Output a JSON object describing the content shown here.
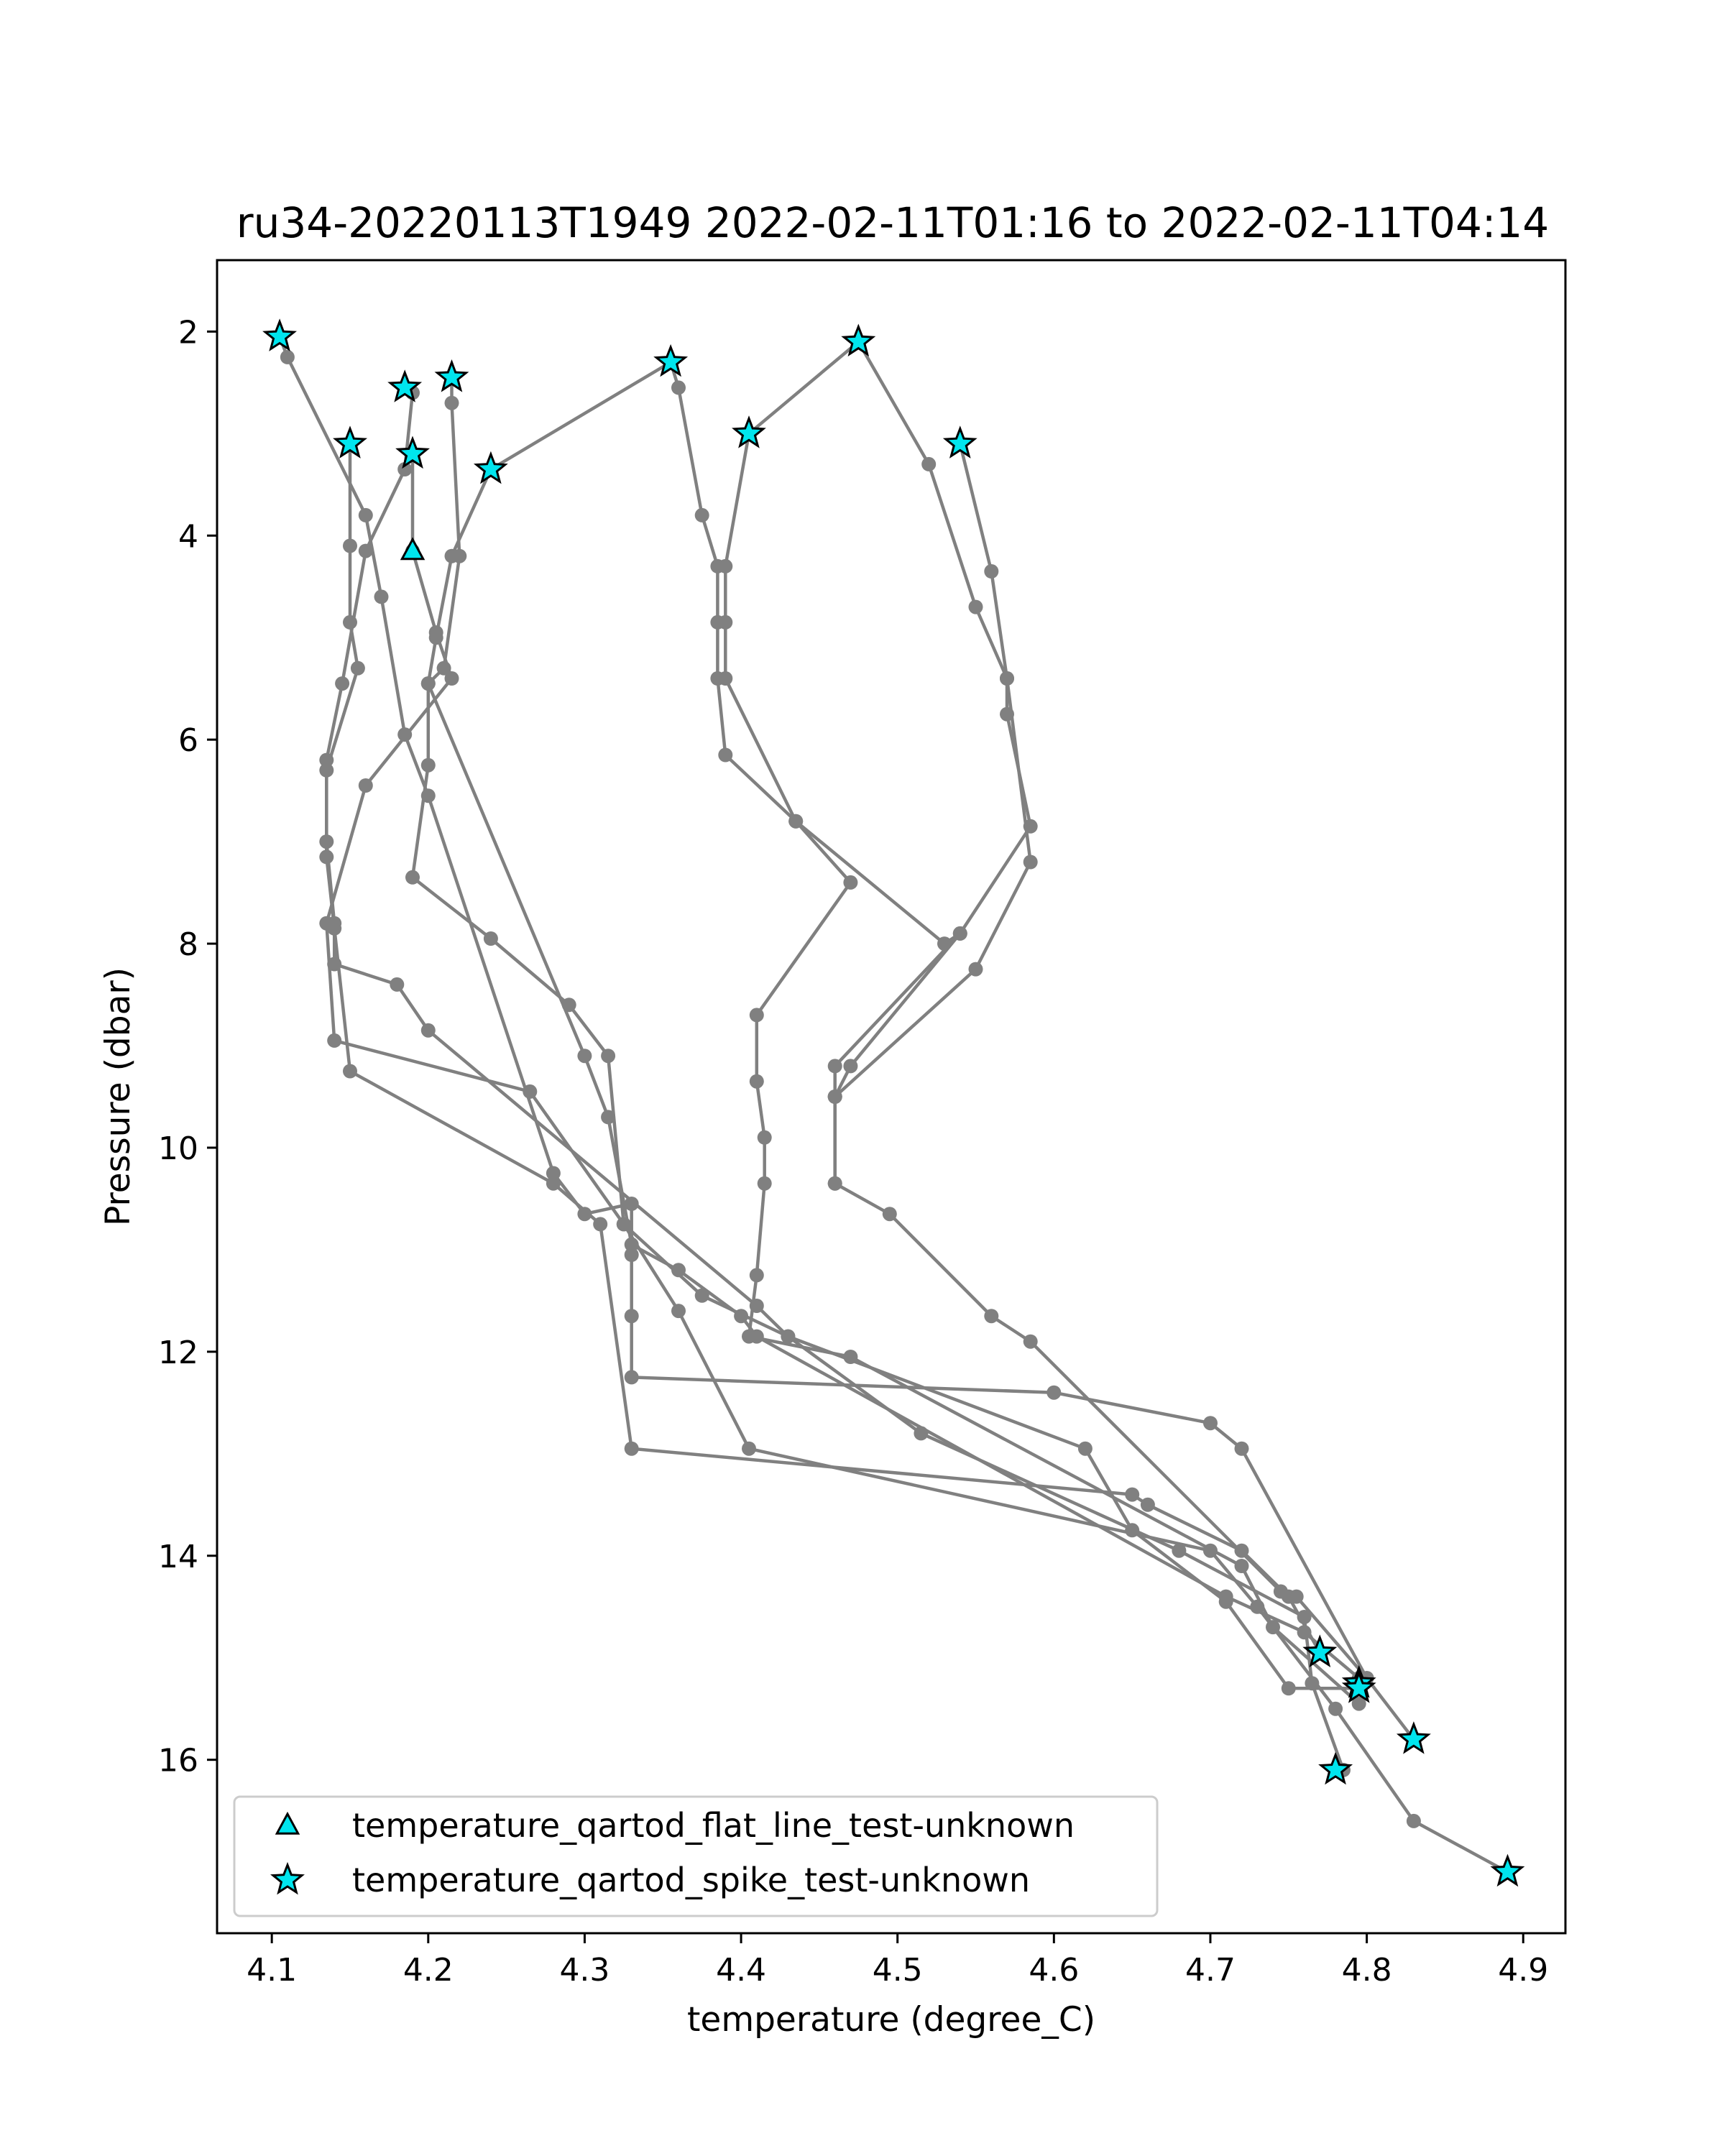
{
  "chart_data": {
    "type": "line",
    "title": "ru34-20220113T1949 2022-02-11T01:16 to 2022-02-11T04:14",
    "xlabel": "temperature (degree_C)",
    "ylabel": "Pressure (dbar)",
    "xlim": [
      4.065,
      4.927
    ],
    "ylim": [
      17.7,
      1.3
    ],
    "y_inverted": true,
    "grid": false,
    "legend_position": "lower-left",
    "xticks": [
      4.1,
      4.2,
      4.3,
      4.4,
      4.5,
      4.6,
      4.7,
      4.8,
      4.9
    ],
    "xtick_labels": [
      "4.1",
      "4.2",
      "4.3",
      "4.4",
      "4.5",
      "4.6",
      "4.7",
      "4.8",
      "4.9"
    ],
    "yticks": [
      2,
      4,
      6,
      8,
      10,
      12,
      14,
      16
    ],
    "ytick_labels": [
      "2",
      "4",
      "6",
      "8",
      "10",
      "12",
      "14",
      "16"
    ],
    "colors": {
      "profile_line": "#808080",
      "flag_marker_fill": "#00e5ee",
      "flag_marker_edge": "#000000"
    },
    "series": [
      {
        "x": [
          4.105,
          4.11,
          4.16,
          4.17,
          4.185,
          4.2,
          4.28,
          4.3,
          4.33,
          4.33,
          4.33,
          4.33,
          4.6,
          4.7,
          4.72,
          4.8,
          4.83
        ],
        "y": [
          2.05,
          2.25,
          3.8,
          4.6,
          5.95,
          6.55,
          10.25,
          10.65,
          10.55,
          11.05,
          11.65,
          12.25,
          12.4,
          12.7,
          12.95,
          15.2,
          15.8
        ]
      },
      {
        "x": [
          4.15,
          4.15,
          4.15,
          4.155,
          4.135,
          4.135,
          4.14,
          4.15,
          4.28,
          4.31,
          4.33,
          4.65,
          4.66,
          4.72,
          4.75,
          4.77
        ],
        "y": [
          3.1,
          4.1,
          4.85,
          5.3,
          6.3,
          7.15,
          7.85,
          9.25,
          10.35,
          10.75,
          12.95,
          13.4,
          13.5,
          13.95,
          14.4,
          14.95
        ]
      },
      {
        "x": [
          4.185,
          4.19,
          4.185,
          4.16,
          4.145,
          4.135,
          4.135,
          4.14,
          4.14,
          4.18,
          4.2,
          4.41,
          4.43,
          4.62,
          4.65,
          4.71,
          4.75,
          4.795
        ],
        "y": [
          2.55,
          2.6,
          3.35,
          4.15,
          5.45,
          6.2,
          7.0,
          7.8,
          8.2,
          8.4,
          8.85,
          11.55,
          11.85,
          12.95,
          13.75,
          14.45,
          15.3,
          15.3
        ]
      },
      {
        "x": [
          4.19,
          4.19,
          4.205,
          4.215,
          4.16,
          4.135,
          4.14,
          4.265,
          4.325,
          4.36,
          4.405,
          4.7,
          4.73,
          4.78,
          4.83,
          4.89
        ],
        "y": [
          3.2,
          4.15,
          4.95,
          5.4,
          6.45,
          7.8,
          8.95,
          9.45,
          10.75,
          11.6,
          12.95,
          13.95,
          14.5,
          15.5,
          16.6,
          17.1
        ]
      },
      {
        "x": [
          4.215,
          4.215,
          4.22,
          4.21,
          4.2,
          4.2,
          4.19,
          4.24,
          4.29,
          4.315,
          4.325,
          4.375,
          4.43,
          4.515,
          4.68,
          4.76,
          4.765,
          4.785
        ],
        "y": [
          2.45,
          2.7,
          4.2,
          5.3,
          5.45,
          6.25,
          7.35,
          7.95,
          8.6,
          9.1,
          10.75,
          11.45,
          11.85,
          12.8,
          13.95,
          14.6,
          15.25,
          16.1
        ]
      },
      {
        "x": [
          4.355,
          4.24,
          4.215,
          4.205,
          4.2,
          4.3,
          4.315,
          4.33,
          4.36,
          4.4,
          4.41,
          4.71,
          4.76,
          4.795
        ],
        "y": [
          2.3,
          3.35,
          4.2,
          5.0,
          5.45,
          9.1,
          9.7,
          10.95,
          11.2,
          11.65,
          11.85,
          14.4,
          14.75,
          15.2
        ]
      },
      {
        "x": [
          4.355,
          4.36,
          4.375,
          4.385,
          4.385,
          4.385,
          4.39,
          4.435,
          4.53,
          4.54,
          4.46,
          4.46,
          4.46,
          4.495,
          4.56,
          4.585,
          4.745,
          4.755,
          4.8
        ],
        "y": [
          2.3,
          2.55,
          3.8,
          4.3,
          4.85,
          5.4,
          6.15,
          6.8,
          8.0,
          7.9,
          9.2,
          9.5,
          10.35,
          10.65,
          11.65,
          11.9,
          14.35,
          14.4,
          15.2
        ]
      },
      {
        "x": [
          4.475,
          4.405,
          4.39,
          4.39,
          4.39,
          4.435,
          4.47,
          4.41,
          4.41,
          4.415,
          4.415,
          4.41,
          4.405,
          4.47,
          4.72,
          4.74,
          4.795
        ],
        "y": [
          2.1,
          3.0,
          4.3,
          4.85,
          5.4,
          6.8,
          7.4,
          8.7,
          9.35,
          9.9,
          10.35,
          11.25,
          11.85,
          12.05,
          14.1,
          14.7,
          15.45
        ]
      },
      {
        "x": [
          4.475,
          4.52,
          4.55,
          4.57,
          4.57,
          4.585,
          4.54,
          4.47,
          4.46,
          4.46
        ],
        "y": [
          2.1,
          3.3,
          4.7,
          5.4,
          5.75,
          6.85,
          7.9,
          9.2,
          9.5,
          10.35
        ]
      },
      {
        "x": [
          4.54,
          4.56,
          4.57,
          4.585,
          4.55,
          4.46
        ],
        "y": [
          3.1,
          4.35,
          5.4,
          7.2,
          8.25,
          9.5
        ]
      }
    ],
    "flags": [
      {
        "name": "temperature_qartod_flat_line_test-unknown",
        "marker": "triangle",
        "points": [
          {
            "x": 4.19,
            "y": 4.15
          }
        ]
      },
      {
        "name": "temperature_qartod_spike_test-unknown",
        "marker": "star",
        "points": [
          {
            "x": 4.105,
            "y": 2.05
          },
          {
            "x": 4.185,
            "y": 2.55
          },
          {
            "x": 4.215,
            "y": 2.45
          },
          {
            "x": 4.355,
            "y": 2.3
          },
          {
            "x": 4.475,
            "y": 2.1
          },
          {
            "x": 4.15,
            "y": 3.1
          },
          {
            "x": 4.19,
            "y": 3.2
          },
          {
            "x": 4.24,
            "y": 3.35
          },
          {
            "x": 4.405,
            "y": 3.0
          },
          {
            "x": 4.54,
            "y": 3.1
          },
          {
            "x": 4.77,
            "y": 14.95
          },
          {
            "x": 4.795,
            "y": 15.25
          },
          {
            "x": 4.795,
            "y": 15.3
          },
          {
            "x": 4.83,
            "y": 15.8
          },
          {
            "x": 4.78,
            "y": 16.1
          },
          {
            "x": 4.89,
            "y": 17.1
          }
        ]
      }
    ]
  }
}
